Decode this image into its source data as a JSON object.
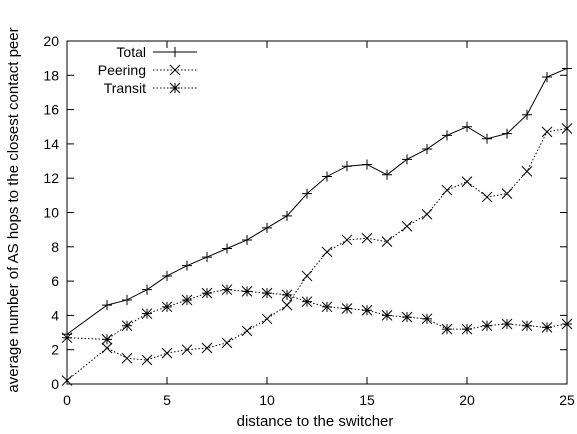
{
  "chart_data": {
    "type": "line",
    "xlabel": "distance to the switcher",
    "ylabel": "average number of AS hops to the closest contact peer",
    "xlim": [
      0,
      25
    ],
    "ylim": [
      0,
      20
    ],
    "xticks": [
      0,
      5,
      10,
      15,
      20,
      25
    ],
    "yticks": [
      0,
      2,
      4,
      6,
      8,
      10,
      12,
      14,
      16,
      18,
      20
    ],
    "grid": false,
    "legend_position": "top-left",
    "x": [
      0,
      2,
      3,
      4,
      5,
      6,
      7,
      8,
      9,
      10,
      11,
      12,
      13,
      14,
      15,
      16,
      17,
      18,
      19,
      20,
      21,
      22,
      23,
      24,
      25
    ],
    "series": [
      {
        "name": "Total",
        "line_style": "solid",
        "marker": "plus",
        "values": [
          2.9,
          4.6,
          4.9,
          5.5,
          6.3,
          6.9,
          7.4,
          7.9,
          8.4,
          9.1,
          9.8,
          11.1,
          12.1,
          12.7,
          12.8,
          12.2,
          13.1,
          13.7,
          14.5,
          15.0,
          14.3,
          14.6,
          15.7,
          17.9,
          18.4
        ]
      },
      {
        "name": "Peering",
        "line_style": "dotted",
        "marker": "cross",
        "values": [
          0.2,
          2.1,
          1.5,
          1.4,
          1.8,
          2.0,
          2.1,
          2.4,
          3.1,
          3.8,
          4.6,
          6.3,
          7.7,
          8.4,
          8.5,
          8.3,
          9.2,
          9.9,
          11.3,
          11.8,
          10.9,
          11.1,
          12.4,
          14.7,
          14.9
        ]
      },
      {
        "name": "Transit",
        "line_style": "dotted",
        "marker": "star",
        "values": [
          2.7,
          2.6,
          3.4,
          4.1,
          4.5,
          4.9,
          5.3,
          5.5,
          5.4,
          5.3,
          5.2,
          4.8,
          4.5,
          4.4,
          4.3,
          4.0,
          3.9,
          3.8,
          3.2,
          3.2,
          3.4,
          3.5,
          3.4,
          3.3,
          3.5
        ]
      }
    ]
  }
}
